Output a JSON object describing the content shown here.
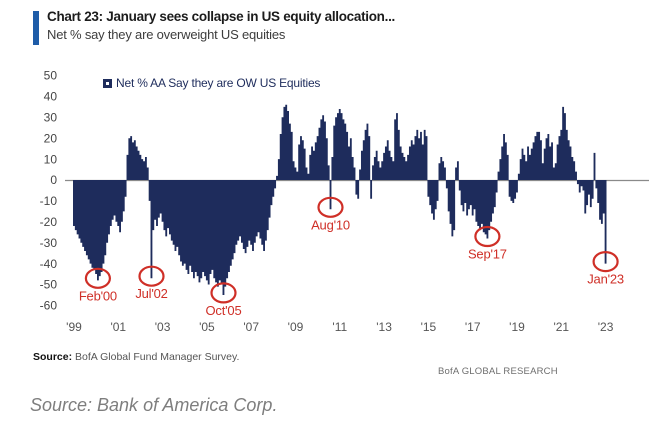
{
  "header": {
    "title": "Chart 23: January sees collapse in US equity allocation...",
    "subtitle": "Net % say they are overweight US equities",
    "accent_color": "#1e5ca8"
  },
  "legend": {
    "label": "Net % AA Say they are OW US Equities",
    "marker_color": "#1e2c5c"
  },
  "chart_data": {
    "type": "bar",
    "title": "Chart 23: January sees collapse in US equity allocation...",
    "subtitle": "Net % say they are overweight US equities",
    "xlabel": "",
    "ylabel": "Net % say they are overweight US equities",
    "ylim": [
      -60,
      50
    ],
    "grid": false,
    "legend_position": "top-left",
    "bar_color": "#1e2c5c",
    "zero_line_color": "#8a8a8a",
    "annotation_color": "#cf2f27",
    "y_ticks": [
      50,
      40,
      30,
      20,
      10,
      0,
      -10,
      -20,
      -30,
      -40,
      -50,
      -60
    ],
    "x_tick_labels": [
      "'99",
      "'01",
      "'03",
      "'05",
      "'07",
      "'09",
      "'11",
      "'13",
      "'15",
      "'17",
      "'19",
      "'21",
      "'23"
    ],
    "frequency": "monthly",
    "start": "1999-01",
    "end": "2023-01",
    "series": [
      {
        "name": "Net % AA Say they are OW US Equities",
        "values": [
          -22,
          -24,
          -26,
          -28,
          -30,
          -32,
          -34,
          -36,
          -38,
          -40,
          -42,
          -43,
          -45,
          -48,
          -46,
          -44,
          -40,
          -36,
          -30,
          -26,
          -22,
          -19,
          -17,
          -20,
          -22,
          -25,
          -20,
          -15,
          -8,
          12,
          20,
          21,
          18,
          19,
          16,
          14,
          12,
          10,
          9,
          11,
          6,
          -10,
          -47,
          -24,
          -19,
          -22,
          -18,
          -16,
          -20,
          -24,
          -27,
          -23,
          -26,
          -29,
          -31,
          -34,
          -32,
          -36,
          -39,
          -41,
          -40,
          -43,
          -45,
          -41,
          -44,
          -47,
          -44,
          -46,
          -49,
          -47,
          -44,
          -46,
          -48,
          -50,
          -45,
          -43,
          -47,
          -49,
          -51,
          -48,
          -50,
          -55,
          -51,
          -47,
          -44,
          -41,
          -38,
          -35,
          -31,
          -29,
          -27,
          -30,
          -33,
          -35,
          -32,
          -29,
          -31,
          -34,
          -30,
          -27,
          -25,
          -28,
          -31,
          -34,
          -29,
          -24,
          -18,
          -12,
          -8,
          -4,
          2,
          10,
          22,
          30,
          35,
          36,
          33,
          27,
          23,
          9,
          6,
          4,
          17,
          21,
          19,
          15,
          6,
          3,
          12,
          16,
          14,
          18,
          21,
          25,
          29,
          31,
          28,
          20,
          7,
          -14,
          11,
          26,
          30,
          32,
          34,
          32,
          29,
          27,
          23,
          16,
          20,
          11,
          6,
          -7,
          -9,
          5,
          14,
          19,
          24,
          27,
          21,
          -9,
          7,
          11,
          14,
          9,
          6,
          9,
          13,
          16,
          19,
          14,
          11,
          9,
          29,
          32,
          24,
          16,
          13,
          11,
          9,
          12,
          16,
          19,
          17,
          21,
          24,
          20,
          23,
          17,
          24,
          21,
          -8,
          -12,
          -16,
          -19,
          -14,
          -10,
          8,
          11,
          9,
          6,
          -4,
          -15,
          -21,
          -27,
          -24,
          6,
          9,
          -5,
          -12,
          -15,
          -11,
          -17,
          -14,
          -12,
          -17,
          -14,
          -20,
          -22,
          -24,
          -21,
          -25,
          -26,
          -28,
          -24,
          -20,
          -16,
          -13,
          -6,
          4,
          10,
          16,
          22,
          18,
          12,
          -8,
          -10,
          -11,
          -9,
          -6,
          3,
          10,
          15,
          12,
          9,
          16,
          12,
          15,
          18,
          21,
          23,
          23,
          19,
          8,
          15,
          20,
          22,
          16,
          18,
          6,
          8,
          17,
          21,
          24,
          35,
          32,
          24,
          19,
          16,
          11,
          9,
          4,
          -2,
          -6,
          -3,
          -5,
          -16,
          -12,
          -7,
          -13,
          -9,
          13,
          -4,
          -11,
          -19,
          -21,
          -16,
          -40
        ]
      }
    ],
    "annotations": [
      {
        "label": "Feb'00",
        "month_index": 13,
        "value": -48
      },
      {
        "label": "Jul'02",
        "month_index": 42,
        "value": -47
      },
      {
        "label": "Oct'05",
        "month_index": 81,
        "value": -55
      },
      {
        "label": "Aug'10",
        "month_index": 139,
        "value": -14
      },
      {
        "label": "Sep'17",
        "month_index": 224,
        "value": -28
      },
      {
        "label": "Jan'23",
        "month_index": 288,
        "value": -40
      }
    ]
  },
  "footer": {
    "source_label": "Source:",
    "source_text": " BofA Global Fund Manager Survey.",
    "brand": "BofA GLOBAL RESEARCH"
  },
  "caption": "Source: Bank of America Corp."
}
